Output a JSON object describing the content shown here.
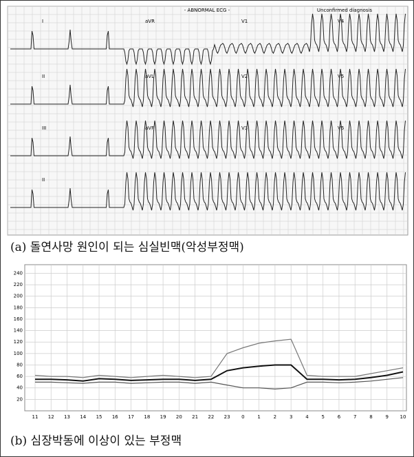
{
  "ecg": {
    "header": [
      "- ABNORMAL ECG -",
      "Unconfirmed diagnosis"
    ],
    "leads": [
      "I",
      "aVR",
      "V1",
      "V4",
      "II",
      "aVL",
      "V2",
      "V5",
      "III",
      "aVF",
      "V3",
      "V6",
      "II"
    ]
  },
  "caption_a": "(a) 돌연사망 원인이 되는 심실빈맥(악성부정맥)",
  "caption_b": "(b) 심장박동에 이상이 있는 부정맥",
  "chart_data": {
    "type": "line",
    "categories": [
      "11",
      "12",
      "13",
      "14",
      "15",
      "16",
      "17",
      "18",
      "19",
      "20",
      "21",
      "22",
      "23",
      "0",
      "1",
      "2",
      "3",
      "4",
      "5",
      "6",
      "7",
      "8",
      "9",
      "10"
    ],
    "series": [
      {
        "color": "#777777",
        "values": [
          62,
          60,
          60,
          58,
          62,
          60,
          58,
          60,
          62,
          60,
          58,
          60,
          100,
          110,
          118,
          122,
          125,
          62,
          60,
          60,
          60,
          65,
          70,
          75
        ]
      },
      {
        "color": "#111111",
        "values": [
          55,
          55,
          54,
          52,
          56,
          55,
          53,
          54,
          55,
          55,
          53,
          55,
          70,
          75,
          78,
          80,
          80,
          55,
          55,
          54,
          55,
          58,
          62,
          68
        ]
      },
      {
        "color": "#555555",
        "values": [
          50,
          50,
          49,
          48,
          50,
          50,
          48,
          49,
          50,
          50,
          48,
          50,
          45,
          40,
          40,
          38,
          40,
          50,
          50,
          49,
          50,
          52,
          55,
          58
        ]
      }
    ],
    "ylim": [
      0,
      255
    ],
    "yticks": [
      20,
      40,
      60,
      80,
      100,
      120,
      140,
      160,
      180,
      200,
      220,
      240
    ],
    "grid": true
  }
}
